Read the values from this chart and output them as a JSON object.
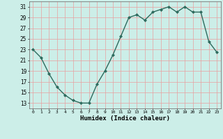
{
  "x": [
    0,
    1,
    2,
    3,
    4,
    5,
    6,
    7,
    8,
    9,
    10,
    11,
    12,
    13,
    14,
    15,
    16,
    17,
    18,
    19,
    20,
    21,
    22,
    23
  ],
  "y": [
    23,
    21.5,
    18.5,
    16,
    14.5,
    13.5,
    13,
    13,
    16.5,
    19,
    22,
    25.5,
    29.0,
    29.5,
    28.5,
    30.0,
    30.5,
    31.0,
    30.0,
    31.0,
    30.0,
    30.0,
    24.5,
    22.5
  ],
  "xlabel": "Humidex (Indice chaleur)",
  "xlim": [
    -0.5,
    23.5
  ],
  "ylim": [
    12,
    32
  ],
  "yticks": [
    13,
    15,
    17,
    19,
    21,
    23,
    25,
    27,
    29,
    31
  ],
  "xticks": [
    0,
    1,
    2,
    3,
    4,
    5,
    6,
    7,
    8,
    9,
    10,
    11,
    12,
    13,
    14,
    15,
    16,
    17,
    18,
    19,
    20,
    21,
    22,
    23
  ],
  "line_color": "#2e6b5e",
  "marker_color": "#2e6b5e",
  "bg_color": "#cceee8",
  "grid_color": "#e8a0a0",
  "markersize": 2.0,
  "linewidth": 1.0
}
